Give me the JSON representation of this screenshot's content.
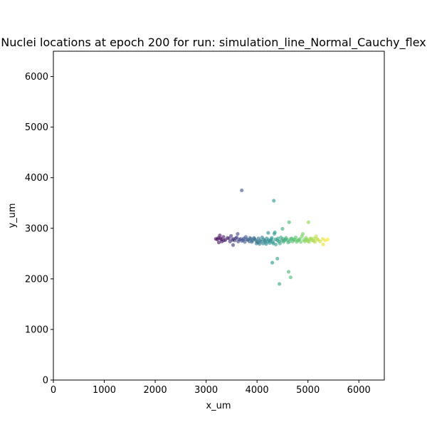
{
  "chart_data": {
    "type": "scatter",
    "title": "Nuclei locations at epoch 200 for run: simulation_line_Normal_Cauchy_flex",
    "xlabel": "x_um",
    "ylabel": "y_um",
    "xlim": [
      0,
      6500
    ],
    "ylim": [
      0,
      6500
    ],
    "xticks": [
      0,
      1000,
      2000,
      3000,
      4000,
      5000,
      6000
    ],
    "yticks": [
      0,
      1000,
      2000,
      3000,
      4000,
      5000,
      6000
    ],
    "grid": false,
    "colormap": "viridis",
    "color_by": "x position",
    "points": [
      [
        3700,
        3750
      ],
      [
        4330,
        3545
      ],
      [
        4630,
        3120
      ],
      [
        5010,
        3120
      ],
      [
        3190,
        2790
      ],
      [
        3240,
        2810
      ],
      [
        3270,
        2860
      ],
      [
        3300,
        2780
      ],
      [
        3340,
        2830
      ],
      [
        3380,
        2770
      ],
      [
        3250,
        2720
      ],
      [
        3310,
        2740
      ],
      [
        3450,
        2800
      ],
      [
        3490,
        2850
      ],
      [
        3530,
        2790
      ],
      [
        3560,
        2760
      ],
      [
        3600,
        2820
      ],
      [
        3620,
        2890
      ],
      [
        3650,
        2780
      ],
      [
        3700,
        2750
      ],
      [
        3740,
        2800
      ],
      [
        3780,
        2830
      ],
      [
        3820,
        2770
      ],
      [
        3850,
        2740
      ],
      [
        3880,
        2790
      ],
      [
        3530,
        2670
      ],
      [
        3910,
        2760
      ],
      [
        3940,
        2810
      ],
      [
        3970,
        2770
      ],
      [
        4000,
        2740
      ],
      [
        4030,
        2800
      ],
      [
        4060,
        2760
      ],
      [
        4100,
        2820
      ],
      [
        4130,
        2780
      ],
      [
        4160,
        2730
      ],
      [
        4190,
        2800
      ],
      [
        4220,
        2910
      ],
      [
        4230,
        2770
      ],
      [
        4260,
        2750
      ],
      [
        4290,
        2810
      ],
      [
        4320,
        2700
      ],
      [
        4340,
        2890
      ],
      [
        4350,
        2920
      ],
      [
        4360,
        2780
      ],
      [
        4400,
        2760
      ],
      [
        4430,
        2740
      ],
      [
        4470,
        2820
      ],
      [
        4500,
        2990
      ],
      [
        4510,
        2790
      ],
      [
        4540,
        2760
      ],
      [
        4570,
        2810
      ],
      [
        4600,
        2770
      ],
      [
        4640,
        2740
      ],
      [
        4680,
        2800
      ],
      [
        4720,
        2780
      ],
      [
        4760,
        2820
      ],
      [
        4800,
        2760
      ],
      [
        4840,
        2790
      ],
      [
        4880,
        2840
      ],
      [
        4900,
        2890
      ],
      [
        4920,
        2770
      ],
      [
        4960,
        2810
      ],
      [
        5000,
        2750
      ],
      [
        5040,
        2790
      ],
      [
        5080,
        2760
      ],
      [
        5120,
        2800
      ],
      [
        5160,
        2840
      ],
      [
        5200,
        2770
      ],
      [
        5240,
        2740
      ],
      [
        5290,
        2790
      ],
      [
        5300,
        2680
      ],
      [
        5340,
        2760
      ],
      [
        5390,
        2780
      ],
      [
        5110,
        2750
      ],
      [
        3220,
        2780
      ],
      [
        3280,
        2800
      ],
      [
        3350,
        2760
      ],
      [
        3420,
        2810
      ],
      [
        3470,
        2740
      ],
      [
        3520,
        2770
      ],
      [
        3580,
        2800
      ],
      [
        3630,
        2740
      ],
      [
        3680,
        2790
      ],
      [
        3730,
        2770
      ],
      [
        3760,
        2730
      ],
      [
        3800,
        2780
      ],
      [
        3860,
        2810
      ],
      [
        3900,
        2730
      ],
      [
        3950,
        2790
      ],
      [
        3990,
        2700
      ],
      [
        4020,
        2720
      ],
      [
        4050,
        2690
      ],
      [
        4080,
        2740
      ],
      [
        4120,
        2700
      ],
      [
        4150,
        2760
      ],
      [
        4180,
        2690
      ],
      [
        4210,
        2740
      ],
      [
        4250,
        2710
      ],
      [
        4280,
        2780
      ],
      [
        4310,
        2730
      ],
      [
        4370,
        2680
      ],
      [
        4410,
        2800
      ],
      [
        4450,
        2700
      ],
      [
        4480,
        2760
      ],
      [
        4520,
        2730
      ],
      [
        4560,
        2780
      ],
      [
        4610,
        2720
      ],
      [
        4660,
        2790
      ],
      [
        4700,
        2740
      ],
      [
        4740,
        2770
      ],
      [
        4780,
        2730
      ],
      [
        4820,
        2770
      ],
      [
        4860,
        2730
      ],
      [
        4940,
        2740
      ],
      [
        4980,
        2780
      ],
      [
        5020,
        2730
      ],
      [
        5060,
        2800
      ],
      [
        5140,
        2730
      ],
      [
        5180,
        2790
      ],
      [
        4300,
        2320
      ],
      [
        4400,
        2400
      ],
      [
        4620,
        2140
      ],
      [
        4660,
        2030
      ],
      [
        4440,
        1900
      ]
    ]
  }
}
